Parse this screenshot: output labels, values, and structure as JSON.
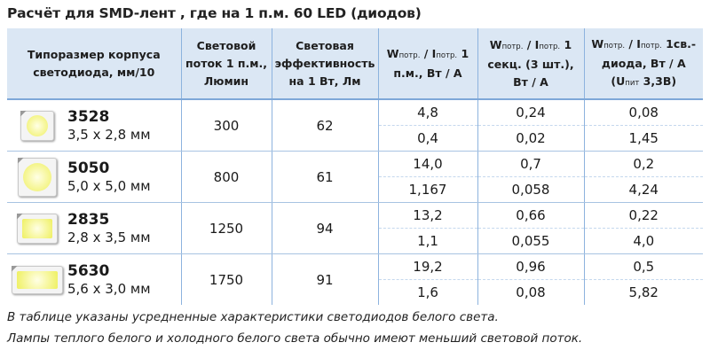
{
  "title": "Расчёт для SMD-лент , где на 1 п.м. 60 LED (диодов)",
  "headers": {
    "col1": "Типоразмер корпуса светодиода, мм/10",
    "col2": "Световой поток 1 п.м., Люмин",
    "col3": "Световая эффективность на 1 Вт, Лм",
    "col4_a": "W",
    "col4_sub1": "потр.",
    "col4_b": " / I",
    "col4_sub2": "потр.",
    "col4_c": " 1 п.м., Вт / А",
    "col5_a": "W",
    "col5_sub1": "потр.",
    "col5_b": " / I",
    "col5_sub2": "потр.",
    "col5_c": " 1 секц. (3 шт.), Вт / А",
    "col6_a": "W",
    "col6_sub1": "потр.",
    "col6_b": " / I",
    "col6_sub2": "потр.",
    "col6_c": " 1св.-диода, Вт / А (U",
    "col6_sub3": "пит",
    "col6_d": " 3,3В)"
  },
  "rows": [
    {
      "name": "3528",
      "dims": "3,5 х 2,8 мм",
      "flux": "300",
      "eff": "62",
      "w_m": "4,8",
      "i_m": "0,4",
      "w_s": "0,24",
      "i_s": "0,02",
      "w_d": "0,08",
      "i_d": "1,45"
    },
    {
      "name": "5050",
      "dims": "5,0 х 5,0 мм",
      "flux": "800",
      "eff": "61",
      "w_m": "14,0",
      "i_m": "1,167",
      "w_s": "0,7",
      "i_s": "0,058",
      "w_d": "0,2",
      "i_d": "4,24"
    },
    {
      "name": "2835",
      "dims": "2,8 х 3,5 мм",
      "flux": "1250",
      "eff": "94",
      "w_m": "13,2",
      "i_m": "1,1",
      "w_s": "0,66",
      "i_s": "0,055",
      "w_d": "0,22",
      "i_d": "4,0"
    },
    {
      "name": "5630",
      "dims": "5,6 х 3,0 мм",
      "flux": "1750",
      "eff": "91",
      "w_m": "19,2",
      "i_m": "1,6",
      "w_s": "0,96",
      "i_s": "0,08",
      "w_d": "0,5",
      "i_d": "5,82"
    }
  ],
  "notes": [
    "В таблице указаны усредненные характеристики светодиодов белого света.",
    "Лампы теплого белого и холодного белого света обычно имеют меньший световой поток."
  ]
}
